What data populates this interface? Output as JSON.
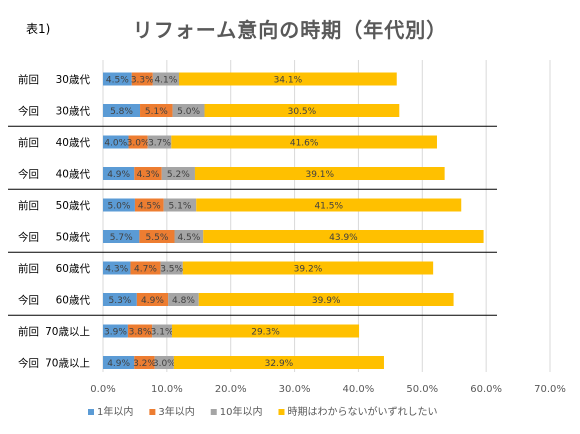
{
  "header": {
    "figure_label": "表1)",
    "title": "リフォーム意向の時期（年代別）"
  },
  "chart_data": {
    "type": "bar",
    "orientation": "horizontal",
    "stacked": true,
    "title": "リフォーム意向の時期（年代別）",
    "categories": [
      "前回　30歳代",
      "今回　30歳代",
      "前回　40歳代",
      "今回　40歳代",
      "前回　50歳代",
      "今回　50歳代",
      "前回　60歳代",
      "今回　60歳代",
      "前回　70歳以上",
      "今回　70歳以上"
    ],
    "series": [
      {
        "name": "1年以内",
        "color": "#5B9BD5",
        "values": [
          4.5,
          5.8,
          4.0,
          4.9,
          5.0,
          5.7,
          4.3,
          5.3,
          3.9,
          4.9
        ]
      },
      {
        "name": "3年以内",
        "color": "#ED7D31",
        "values": [
          3.3,
          5.1,
          3.0,
          4.3,
          4.5,
          5.5,
          4.7,
          4.9,
          3.8,
          3.2
        ]
      },
      {
        "name": "10年以内",
        "color": "#A5A5A5",
        "values": [
          4.1,
          5.0,
          3.7,
          5.2,
          5.1,
          4.5,
          3.5,
          4.8,
          3.1,
          3.0
        ]
      },
      {
        "name": "時期はわからないがいずれしたい",
        "color": "#FFC000",
        "values": [
          34.1,
          30.5,
          41.6,
          39.1,
          41.5,
          43.9,
          39.2,
          39.9,
          29.3,
          32.9
        ]
      }
    ],
    "data_labels": [
      [
        "4.5%",
        "5.8%",
        "4.0%",
        "4.9%",
        "5.0%",
        "5.7%",
        "4.3%",
        "5.3%",
        "3.9%",
        "4.9%"
      ],
      [
        "3.3%",
        "5.1%",
        "3.0%",
        "4.3%",
        "4.5%",
        "5.5%",
        "4.7%",
        "4.9%",
        "3.8%",
        "3.2%"
      ],
      [
        "4.1%",
        "5.0%",
        "3.7%",
        "5.2%",
        "5.1%",
        "4.5%",
        "3.5%",
        "4.8%",
        "3.1%",
        "3.0%"
      ],
      [
        "34.1%",
        "30.5%",
        "41.6%",
        "39.1%",
        "41.5%",
        "43.9%",
        "39.2%",
        "39.9%",
        "29.3%",
        "32.9%"
      ]
    ],
    "xlim": [
      0,
      70
    ],
    "x_ticks": [
      "0.0%",
      "10.0%",
      "20.0%",
      "30.0%",
      "40.0%",
      "50.0%",
      "60.0%",
      "70.0%"
    ],
    "grid": true,
    "legend_position": "bottom",
    "group_separators": true
  }
}
